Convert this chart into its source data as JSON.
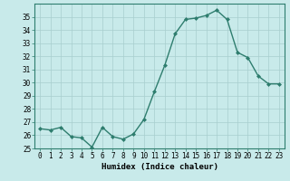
{
  "x": [
    0,
    1,
    2,
    3,
    4,
    5,
    6,
    7,
    8,
    9,
    10,
    11,
    12,
    13,
    14,
    15,
    16,
    17,
    18,
    19,
    20,
    21,
    22,
    23
  ],
  "y": [
    26.5,
    26.4,
    26.6,
    25.9,
    25.8,
    25.1,
    26.6,
    25.9,
    25.7,
    26.1,
    27.2,
    29.3,
    31.3,
    33.7,
    34.8,
    34.9,
    35.1,
    35.5,
    34.8,
    32.3,
    31.9,
    30.5,
    29.9,
    29.9
  ],
  "line_color": "#2e7d6e",
  "marker": "D",
  "marker_size": 2,
  "bg_color": "#c8eaea",
  "grid_color": "#a8cece",
  "xlabel": "Humidex (Indice chaleur)",
  "ylim": [
    25,
    36
  ],
  "xlim": [
    -0.5,
    23.5
  ],
  "yticks": [
    25,
    26,
    27,
    28,
    29,
    30,
    31,
    32,
    33,
    34,
    35
  ],
  "xticks": [
    0,
    1,
    2,
    3,
    4,
    5,
    6,
    7,
    8,
    9,
    10,
    11,
    12,
    13,
    14,
    15,
    16,
    17,
    18,
    19,
    20,
    21,
    22,
    23
  ],
  "tick_fontsize": 5.5,
  "xlabel_fontsize": 6.5,
  "linewidth": 1.0
}
